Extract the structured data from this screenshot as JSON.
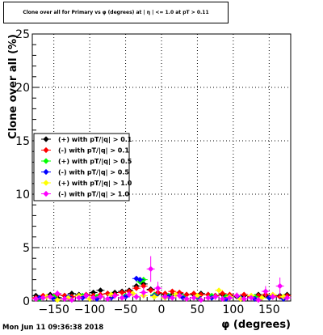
{
  "chart_data": {
    "type": "scatter",
    "title": "Clone  over all for Primary vs φ (degrees) at | η | <= 1.0 at pT > 0.11",
    "xlabel": "φ (degrees)",
    "ylabel": "Clone  over all (%)",
    "xlim": [
      -180,
      180
    ],
    "ylim": [
      0,
      25
    ],
    "x_ticks": [
      -150,
      -100,
      -50,
      0,
      50,
      100,
      150
    ],
    "y_ticks": [
      0,
      5,
      10,
      15,
      20,
      25
    ],
    "grid": true,
    "legend_position": "left-middle",
    "series": [
      {
        "name": "(+) with pT/|q| > 0.1",
        "color": "#000000",
        "x": [
          -175,
          -165,
          -155,
          -145,
          -135,
          -125,
          -115,
          -105,
          -95,
          -85,
          -75,
          -65,
          -55,
          -45,
          -35,
          -25,
          -15,
          -5,
          5,
          15,
          25,
          35,
          45,
          55,
          65,
          75,
          85,
          95,
          105,
          115,
          125,
          135,
          145,
          155,
          165,
          175
        ],
        "y": [
          0.5,
          0.4,
          0.6,
          0.3,
          0.5,
          0.7,
          0.6,
          0.5,
          0.8,
          1.0,
          0.7,
          0.8,
          0.9,
          1.0,
          1.4,
          1.6,
          1.1,
          0.7,
          0.6,
          0.6,
          0.7,
          0.6,
          0.6,
          0.7,
          0.6,
          0.5,
          0.6,
          0.5,
          0.4,
          0.5,
          0.4,
          0.6,
          0.5,
          0.4,
          0.5,
          0.6
        ]
      },
      {
        "name": "(-) with pT/|q| > 0.1",
        "color": "#ff0000",
        "x": [
          -175,
          -165,
          -155,
          -145,
          -135,
          -125,
          -115,
          -105,
          -95,
          -85,
          -75,
          -65,
          -55,
          -45,
          -35,
          -25,
          -15,
          -5,
          5,
          15,
          25,
          35,
          45,
          55,
          65,
          75,
          85,
          95,
          105,
          115,
          125,
          135,
          145,
          155,
          165,
          175
        ],
        "y": [
          0.3,
          0.5,
          0.4,
          0.6,
          0.5,
          0.4,
          0.5,
          0.6,
          0.5,
          0.6,
          0.7,
          0.6,
          0.8,
          0.9,
          1.2,
          1.4,
          1.0,
          0.8,
          0.7,
          0.9,
          0.8,
          0.6,
          0.7,
          0.6,
          0.6,
          0.5,
          0.7,
          0.6,
          0.5,
          0.6,
          0.4,
          0.5,
          0.6,
          0.5,
          0.4,
          0.5
        ]
      },
      {
        "name": "(+) with pT/|q| > 0.5",
        "color": "#00ff00",
        "x": [
          -170,
          -150,
          -130,
          -110,
          -90,
          -70,
          -50,
          -30,
          -25,
          -10,
          10,
          30,
          50,
          70,
          90,
          110,
          130,
          150,
          170
        ],
        "y": [
          0.2,
          0.4,
          0.3,
          0.5,
          0.4,
          0.6,
          0.5,
          1.8,
          2.0,
          0.6,
          0.5,
          0.4,
          0.3,
          0.5,
          0.4,
          0.3,
          0.4,
          0.3,
          0.4
        ]
      },
      {
        "name": "(-) with pT/|q| > 0.5",
        "color": "#0000ff",
        "x": [
          -170,
          -150,
          -130,
          -110,
          -90,
          -70,
          -50,
          -35,
          -30,
          -10,
          10,
          30,
          50,
          70,
          90,
          110,
          130,
          150,
          170
        ],
        "y": [
          0.3,
          0.2,
          0.4,
          0.3,
          0.2,
          0.3,
          0.4,
          2.1,
          2.0,
          0.5,
          0.4,
          0.3,
          0.4,
          0.3,
          0.2,
          0.3,
          0.2,
          0.3,
          0.2
        ]
      },
      {
        "name": "(+) with pT/|q| > 1.0",
        "color": "#ffff00",
        "x": [
          -175,
          -160,
          -145,
          -130,
          -115,
          -100,
          -85,
          -70,
          -55,
          -40,
          -25,
          -10,
          5,
          20,
          35,
          50,
          65,
          80,
          95,
          110,
          125,
          140,
          155,
          170
        ],
        "y": [
          0.2,
          0.4,
          0.1,
          0.3,
          0.5,
          0.2,
          0.4,
          0.6,
          0.3,
          0.7,
          0.5,
          0.4,
          0.3,
          0.6,
          0.2,
          0.5,
          0.3,
          1.0,
          0.4,
          0.2,
          0.5,
          0.3,
          0.6,
          0.4
        ]
      },
      {
        "name": "(-) with pT/|q| > 1.0",
        "color": "#ff00ff",
        "x": [
          -175,
          -165,
          -155,
          -145,
          -135,
          -125,
          -115,
          -105,
          -95,
          -85,
          -75,
          -65,
          -55,
          -45,
          -35,
          -25,
          -15,
          -5,
          5,
          15,
          25,
          35,
          45,
          55,
          65,
          75,
          85,
          95,
          105,
          115,
          125,
          135,
          145,
          155,
          165,
          175
        ],
        "y": [
          0.2,
          0.3,
          0.4,
          0.7,
          0.2,
          0.1,
          0.3,
          0.5,
          0.3,
          0.4,
          0.2,
          0.5,
          0.3,
          0.6,
          0.4,
          0.8,
          3.0,
          1.2,
          0.4,
          0.3,
          0.5,
          0.2,
          0.3,
          0.1,
          0.3,
          0.4,
          0.2,
          0.3,
          0.5,
          0.2,
          0.3,
          0.1,
          0.9,
          0.4,
          1.4,
          0.3
        ],
        "err": [
          0.2,
          0.2,
          0.2,
          0.3,
          0.2,
          0.1,
          0.2,
          0.3,
          0.2,
          0.3,
          0.2,
          0.3,
          0.2,
          0.3,
          0.3,
          0.5,
          1.2,
          0.6,
          0.3,
          0.2,
          0.3,
          0.2,
          0.2,
          0.1,
          0.2,
          0.3,
          0.2,
          0.2,
          0.3,
          0.2,
          0.2,
          0.1,
          0.5,
          0.3,
          0.8,
          0.2
        ]
      }
    ]
  },
  "footer": {
    "timestamp": "Mon Jun 11 09:36:38 2018"
  }
}
